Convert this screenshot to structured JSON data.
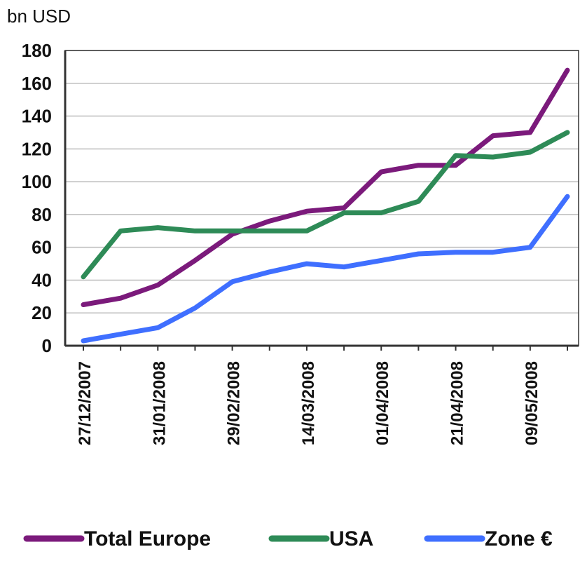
{
  "chart_data": {
    "type": "line",
    "ylabel": "bn USD",
    "ylim": [
      0,
      180
    ],
    "yticks": [
      0,
      20,
      40,
      60,
      80,
      100,
      120,
      140,
      160,
      180
    ],
    "xtick_labels": [
      "27/12/2007",
      "31/01/2008",
      "29/02/2008",
      "14/03/2008",
      "01/04/2008",
      "21/04/2008",
      "09/05/2008"
    ],
    "grid": "horizontal",
    "legend": "bottom",
    "series": [
      {
        "name": "Total Europe",
        "color": "#7b1a7b",
        "values": [
          25,
          29,
          37,
          52,
          68,
          76,
          82,
          84,
          106,
          110,
          110,
          128,
          130,
          168
        ]
      },
      {
        "name": "USA",
        "color": "#2e8b57",
        "values": [
          42,
          70,
          72,
          70,
          70,
          70,
          70,
          81,
          81,
          88,
          116,
          115,
          118,
          130
        ]
      },
      {
        "name": "Zone €",
        "color": "#3f6fff",
        "values": [
          3,
          7,
          11,
          23,
          39,
          45,
          50,
          48,
          52,
          56,
          57,
          57,
          60,
          91
        ]
      }
    ]
  }
}
